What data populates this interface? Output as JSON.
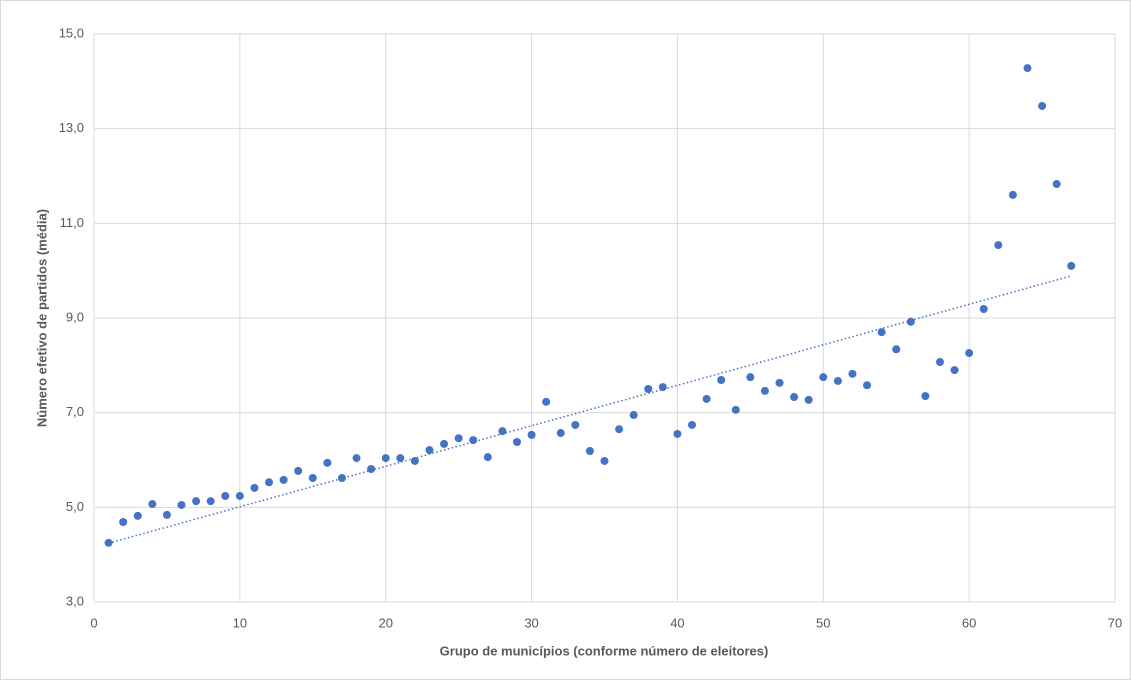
{
  "chart_data": {
    "type": "scatter",
    "xlabel": "Grupo de municípios (conforme número de eleitores)",
    "ylabel": "Número efetivo de partidos (média)",
    "x": [
      1,
      2,
      3,
      4,
      5,
      6,
      7,
      8,
      9,
      10,
      11,
      12,
      13,
      14,
      15,
      16,
      17,
      18,
      19,
      20,
      21,
      22,
      23,
      24,
      25,
      26,
      27,
      28,
      29,
      30,
      31,
      32,
      33,
      34,
      35,
      36,
      37,
      38,
      39,
      40,
      41,
      42,
      43,
      44,
      45,
      46,
      47,
      48,
      49,
      50,
      51,
      52,
      53,
      54,
      55,
      56,
      57,
      58,
      59,
      60,
      61,
      62,
      63,
      64,
      65,
      66,
      67
    ],
    "values": [
      4.25,
      4.69,
      4.82,
      5.07,
      4.84,
      5.05,
      5.13,
      5.13,
      5.24,
      5.24,
      5.41,
      5.53,
      5.58,
      5.77,
      5.62,
      5.94,
      5.62,
      6.04,
      5.81,
      6.04,
      6.04,
      5.98,
      6.21,
      6.34,
      6.46,
      6.42,
      6.06,
      6.61,
      6.38,
      6.53,
      7.23,
      6.57,
      6.74,
      6.19,
      5.98,
      6.65,
      6.95,
      7.5,
      7.54,
      6.55,
      6.74,
      7.29,
      7.69,
      7.06,
      7.75,
      7.46,
      7.63,
      7.33,
      7.27,
      7.75,
      7.67,
      7.82,
      7.58,
      8.7,
      8.34,
      8.92,
      7.35,
      8.07,
      7.9,
      8.26,
      9.19,
      10.54,
      11.6,
      14.28,
      13.48,
      11.83,
      10.1
    ],
    "color": "#4472c4",
    "trendline": "linear",
    "xlim": [
      0,
      70
    ],
    "xticks": [
      0,
      10,
      20,
      30,
      40,
      50,
      60,
      70
    ],
    "ylim": [
      3,
      15
    ],
    "yticks": [
      {
        "value": 3,
        "label": "3,0"
      },
      {
        "value": 5,
        "label": "5,0"
      },
      {
        "value": 7,
        "label": "7,0"
      },
      {
        "value": 9,
        "label": "9,0"
      },
      {
        "value": 11,
        "label": "11,0"
      },
      {
        "value": 13,
        "label": "13,0"
      },
      {
        "value": 15,
        "label": "15,0"
      }
    ],
    "grid": true
  }
}
